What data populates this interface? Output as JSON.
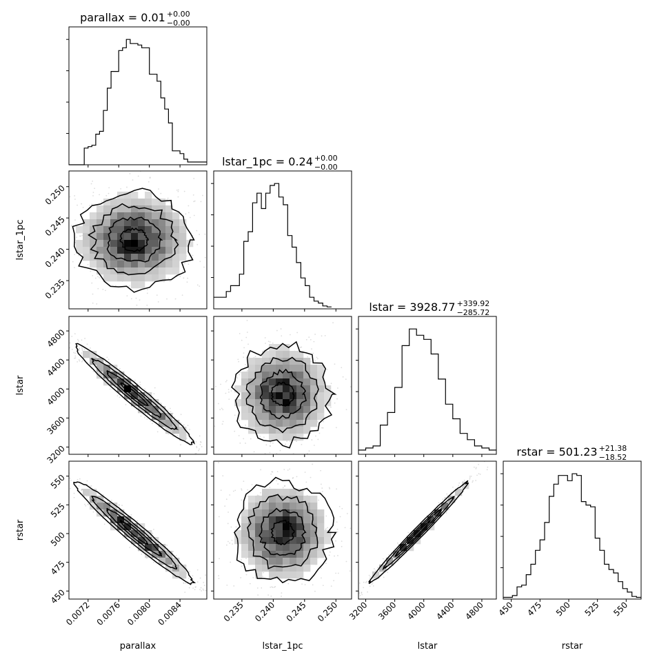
{
  "figure": {
    "parameters": [
      "parallax",
      "lstar_1pc",
      "lstar",
      "rstar"
    ]
  },
  "chart_data": {
    "type": "corner",
    "parameters": [
      {
        "name": "parallax",
        "title": {
          "label": "parallax = 0.01",
          "plus": "+0.00",
          "minus": "−0.00"
        },
        "xlim": [
          0.00695,
          0.00875
        ],
        "ticks": [
          0.0072,
          0.0076,
          0.008,
          0.0084
        ],
        "tick_labels": [
          "0.0072",
          "0.0076",
          "0.0080",
          "0.0084"
        ],
        "hist_edges": [
          0.00695,
          0.00715,
          0.0072,
          0.00725,
          0.0073,
          0.00735,
          0.0074,
          0.00745,
          0.0075,
          0.00755,
          0.0076,
          0.00765,
          0.0077,
          0.00775,
          0.0078,
          0.00785,
          0.0079,
          0.00795,
          0.008,
          0.00805,
          0.0081,
          0.00815,
          0.0082,
          0.00825,
          0.0083,
          0.00835,
          0.0084,
          0.00845,
          0.0085,
          0.00875
        ],
        "hist_counts": [
          0,
          12,
          13,
          14,
          22,
          24,
          39,
          55,
          67,
          67,
          82,
          84,
          90,
          87,
          87,
          86,
          84,
          84,
          65,
          65,
          60,
          48,
          40,
          30,
          10,
          10,
          8,
          4,
          2
        ]
      },
      {
        "name": "lstar_1pc",
        "title": {
          "label": "lstar_1pc = 0.24",
          "plus": "+0.00",
          "minus": "−0.00"
        },
        "xlim": [
          0.2305,
          0.2525
        ],
        "ticks": [
          0.235,
          0.24,
          0.245,
          0.25
        ],
        "tick_labels": [
          "0.235",
          "0.240",
          "0.245",
          "0.250"
        ],
        "hist_edges": [
          0.2305,
          0.2325,
          0.2332,
          0.2339,
          0.2346,
          0.2353,
          0.236,
          0.2367,
          0.2374,
          0.2381,
          0.2388,
          0.2395,
          0.2402,
          0.2409,
          0.2416,
          0.2423,
          0.243,
          0.2437,
          0.2444,
          0.2451,
          0.2458,
          0.2465,
          0.2472,
          0.2479,
          0.2486,
          0.2493,
          0.2525
        ],
        "hist_counts": [
          12,
          18,
          24,
          24,
          36,
          70,
          80,
          110,
          120,
          104,
          120,
          128,
          130,
          116,
          108,
          76,
          64,
          48,
          32,
          24,
          12,
          8,
          6,
          3,
          2
        ]
      },
      {
        "name": "lstar",
        "title": {
          "label": "lstar = 3928.77",
          "plus": "+339.92",
          "minus": "−285.72"
        },
        "xlim": [
          3100,
          5000
        ],
        "ticks": [
          3200,
          3600,
          4000,
          4400,
          4800
        ],
        "tick_labels": [
          "3200",
          "3600",
          "4000",
          "4400",
          "4800"
        ],
        "hist_edges": [
          3100,
          3200,
          3300,
          3400,
          3500,
          3600,
          3700,
          3800,
          3900,
          4000,
          4100,
          4200,
          4300,
          4400,
          4500,
          4600,
          4700,
          4800,
          4900,
          5000
        ],
        "hist_counts": [
          4,
          6,
          8,
          28,
          40,
          64,
          104,
          120,
          114,
          110,
          96,
          72,
          48,
          34,
          20,
          14,
          8,
          6,
          4
        ]
      },
      {
        "name": "rstar",
        "title": {
          "label": "rstar = 501.23",
          "plus": "+21.38",
          "minus": "−18.52"
        },
        "xlim": [
          443,
          563
        ],
        "ticks": [
          450,
          475,
          500,
          525,
          550
        ],
        "tick_labels": [
          "450",
          "475",
          "500",
          "525",
          "550"
        ],
        "hist_edges": [
          443,
          451,
          455,
          459,
          463,
          467,
          471,
          475,
          479,
          483,
          487,
          491,
          495,
          499,
          503,
          507,
          511,
          515,
          519,
          523,
          527,
          531,
          535,
          539,
          543,
          547,
          551,
          555,
          559,
          563
        ],
        "hist_counts": [
          2,
          4,
          14,
          16,
          28,
          40,
          56,
          68,
          88,
          118,
          132,
          142,
          142,
          136,
          144,
          142,
          112,
          108,
          106,
          70,
          56,
          40,
          34,
          30,
          20,
          12,
          8,
          3,
          2
        ]
      }
    ],
    "pairs": [
      {
        "row": 1,
        "col": 0,
        "type": "2d-density",
        "trend": "none",
        "center": [
          0.0078,
          0.2415
        ],
        "spread": [
          0.00035,
          0.0035
        ]
      },
      {
        "row": 2,
        "col": 0,
        "type": "2d-density",
        "trend": "negative",
        "center": [
          0.0078,
          3929
        ],
        "spread": [
          0.00035,
          310
        ]
      },
      {
        "row": 2,
        "col": 1,
        "type": "2d-density",
        "trend": "none",
        "center": [
          0.2415,
          3929
        ],
        "spread": [
          0.0035,
          310
        ]
      },
      {
        "row": 3,
        "col": 0,
        "type": "2d-density",
        "trend": "negative",
        "center": [
          0.0078,
          501
        ],
        "spread": [
          0.00035,
          20
        ]
      },
      {
        "row": 3,
        "col": 1,
        "type": "2d-density",
        "trend": "none",
        "center": [
          0.2415,
          501
        ],
        "spread": [
          0.0035,
          20
        ]
      },
      {
        "row": 3,
        "col": 2,
        "type": "2d-density",
        "trend": "positive",
        "center": [
          3929,
          501
        ],
        "spread": [
          310,
          20
        ]
      }
    ]
  }
}
